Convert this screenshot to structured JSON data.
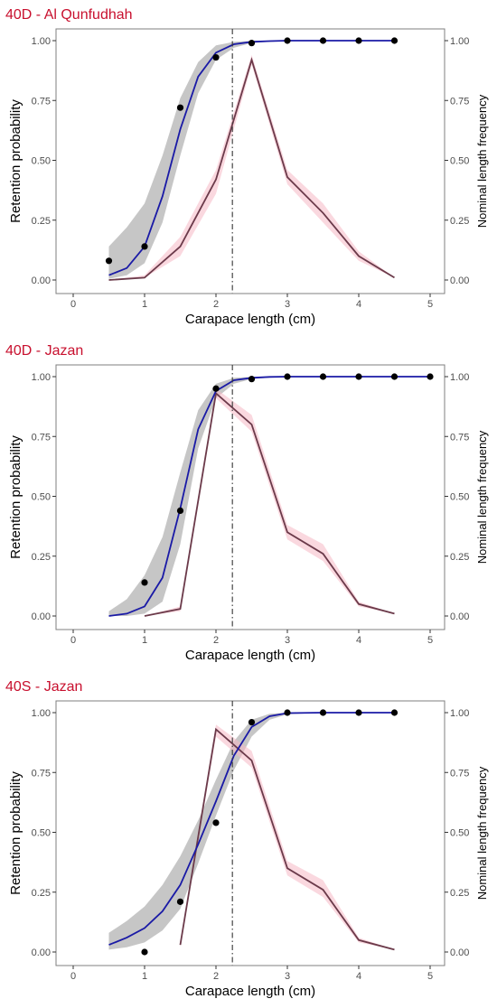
{
  "style": {
    "title_color": "#c8102e",
    "fit_color": "#1a1aa6",
    "ci_color": "#b3b3b3",
    "ci_blue_tint": "#a9b3de",
    "freq_color": "#6b3a4a",
    "freq_band_color": "#f5b8c4",
    "point_color": "#000000",
    "vline_color": "#333333",
    "frame_color": "#7f7f7f"
  },
  "chart_data": [
    {
      "type": "line",
      "title": "40D - Al Qunfudhah",
      "xlabel": "Carapace length (cm)",
      "ylabel": "Retention probability",
      "y2label": "Nominal length frequency",
      "xlim": [
        0,
        5
      ],
      "ylim": [
        0,
        1
      ],
      "x_ticks": [
        "0",
        "1",
        "2",
        "3",
        "4",
        "5"
      ],
      "y_ticks": [
        "0.00",
        "0.25",
        "0.50",
        "0.75",
        "1.00"
      ],
      "y2_ticks": [
        "0.00",
        "0.25",
        "0.50",
        "0.75",
        "1.00"
      ],
      "vline_x": 2.23,
      "grid": false,
      "series": [
        {
          "kind": "fitted_curve_with_band",
          "x": [
            0.5,
            0.75,
            1.0,
            1.25,
            1.5,
            1.75,
            2.0,
            2.25,
            2.5,
            2.75,
            3.0,
            3.5,
            4.0,
            4.5
          ],
          "y": [
            0.02,
            0.05,
            0.14,
            0.35,
            0.63,
            0.85,
            0.95,
            0.985,
            0.995,
            0.998,
            1.0,
            1.0,
            1.0,
            1.0
          ],
          "lower": [
            0.005,
            0.02,
            0.07,
            0.24,
            0.52,
            0.78,
            0.92,
            0.97,
            0.99,
            0.995,
            0.998,
            1.0,
            1.0,
            1.0
          ],
          "upper": [
            0.14,
            0.22,
            0.32,
            0.52,
            0.76,
            0.91,
            0.98,
            0.995,
            0.999,
            1.0,
            1.0,
            1.0,
            1.0,
            1.0
          ]
        },
        {
          "kind": "observed_points",
          "x": [
            0.5,
            1.0,
            1.5,
            2.0,
            2.5,
            3.0,
            3.5,
            4.0,
            4.5
          ],
          "y": [
            0.08,
            0.14,
            0.72,
            0.93,
            0.99,
            1.0,
            1.0,
            1.0,
            1.0
          ]
        },
        {
          "kind": "frequency_line_with_band",
          "x": [
            0.5,
            1.0,
            1.5,
            2.0,
            2.5,
            3.0,
            3.5,
            4.0,
            4.5
          ],
          "y": [
            0.0,
            0.01,
            0.14,
            0.42,
            0.92,
            0.43,
            0.28,
            0.1,
            0.01
          ],
          "lower": [
            0.0,
            0.01,
            0.1,
            0.36,
            0.9,
            0.4,
            0.24,
            0.08,
            0.01
          ],
          "upper": [
            0.0,
            0.02,
            0.18,
            0.46,
            0.94,
            0.46,
            0.32,
            0.12,
            0.01
          ]
        }
      ]
    },
    {
      "type": "line",
      "title": "40D - Jazan",
      "xlabel": "Carapace length (cm)",
      "ylabel": "Retention probability",
      "y2label": "Nominal length frequency",
      "xlim": [
        0,
        5
      ],
      "ylim": [
        0,
        1
      ],
      "x_ticks": [
        "0",
        "1",
        "2",
        "3",
        "4",
        "5"
      ],
      "y_ticks": [
        "0.00",
        "0.25",
        "0.50",
        "0.75",
        "1.00"
      ],
      "y2_ticks": [
        "0.00",
        "0.25",
        "0.50",
        "0.75",
        "1.00"
      ],
      "vline_x": 2.23,
      "grid": false,
      "series": [
        {
          "kind": "fitted_curve_with_band",
          "x": [
            0.5,
            0.75,
            1.0,
            1.25,
            1.5,
            1.75,
            2.0,
            2.25,
            2.5,
            2.75,
            3.0,
            3.5,
            4.0,
            4.5,
            5.0
          ],
          "y": [
            0.0,
            0.01,
            0.04,
            0.16,
            0.45,
            0.78,
            0.94,
            0.985,
            0.995,
            0.999,
            1.0,
            1.0,
            1.0,
            1.0,
            1.0
          ],
          "lower": [
            0.0,
            0.0,
            0.01,
            0.06,
            0.3,
            0.7,
            0.91,
            0.97,
            0.99,
            0.996,
            0.999,
            1.0,
            1.0,
            1.0,
            1.0
          ],
          "upper": [
            0.02,
            0.07,
            0.17,
            0.33,
            0.6,
            0.86,
            0.97,
            0.995,
            0.999,
            1.0,
            1.0,
            1.0,
            1.0,
            1.0,
            1.0
          ]
        },
        {
          "kind": "observed_points",
          "x": [
            1.0,
            1.5,
            2.0,
            2.5,
            3.0,
            3.5,
            4.0,
            4.5,
            5.0
          ],
          "y": [
            0.14,
            0.44,
            0.95,
            0.99,
            1.0,
            1.0,
            1.0,
            1.0,
            1.0
          ]
        },
        {
          "kind": "frequency_line_with_band",
          "x": [
            1.0,
            1.5,
            2.0,
            2.5,
            3.0,
            3.5,
            4.0,
            4.5
          ],
          "y": [
            0.0,
            0.03,
            0.93,
            0.8,
            0.35,
            0.26,
            0.05,
            0.01
          ],
          "lower": [
            0.0,
            0.02,
            0.91,
            0.77,
            0.32,
            0.23,
            0.04,
            0.01
          ],
          "upper": [
            0.0,
            0.04,
            0.95,
            0.84,
            0.38,
            0.3,
            0.06,
            0.01
          ]
        }
      ]
    },
    {
      "type": "line",
      "title": "40S - Jazan",
      "xlabel": "Carapace length (cm)",
      "ylabel": "Retention probability",
      "y2label": "Nominal length frequency",
      "xlim": [
        0,
        5
      ],
      "ylim": [
        0,
        1
      ],
      "x_ticks": [
        "0",
        "1",
        "2",
        "3",
        "4",
        "5"
      ],
      "y_ticks": [
        "0.00",
        "0.25",
        "0.50",
        "0.75",
        "1.00"
      ],
      "y2_ticks": [
        "0.00",
        "0.25",
        "0.50",
        "0.75",
        "1.00"
      ],
      "vline_x": 2.23,
      "grid": false,
      "series": [
        {
          "kind": "fitted_curve_with_band",
          "x": [
            0.5,
            0.75,
            1.0,
            1.25,
            1.5,
            1.75,
            2.0,
            2.25,
            2.5,
            2.75,
            3.0,
            3.5,
            4.0,
            4.5
          ],
          "y": [
            0.03,
            0.06,
            0.1,
            0.17,
            0.28,
            0.45,
            0.63,
            0.82,
            0.94,
            0.985,
            0.998,
            1.0,
            1.0,
            1.0
          ],
          "lower": [
            0.01,
            0.02,
            0.04,
            0.09,
            0.18,
            0.37,
            0.57,
            0.76,
            0.9,
            0.97,
            0.993,
            1.0,
            1.0,
            1.0
          ],
          "upper": [
            0.08,
            0.13,
            0.19,
            0.28,
            0.4,
            0.55,
            0.72,
            0.88,
            0.97,
            0.995,
            1.0,
            1.0,
            1.0,
            1.0
          ]
        },
        {
          "kind": "observed_points",
          "x": [
            1.0,
            1.5,
            2.0,
            2.5,
            3.0,
            3.5,
            4.0,
            4.5
          ],
          "y": [
            0.0,
            0.21,
            0.54,
            0.96,
            1.0,
            1.0,
            1.0,
            1.0
          ]
        },
        {
          "kind": "frequency_line_with_band",
          "x": [
            1.5,
            2.0,
            2.5,
            3.0,
            3.5,
            4.0,
            4.5
          ],
          "y": [
            0.03,
            0.93,
            0.8,
            0.35,
            0.26,
            0.05,
            0.01
          ],
          "lower": [
            0.02,
            0.9,
            0.77,
            0.32,
            0.23,
            0.04,
            0.01
          ],
          "upper": [
            0.04,
            0.95,
            0.84,
            0.38,
            0.3,
            0.06,
            0.01
          ]
        }
      ]
    }
  ]
}
